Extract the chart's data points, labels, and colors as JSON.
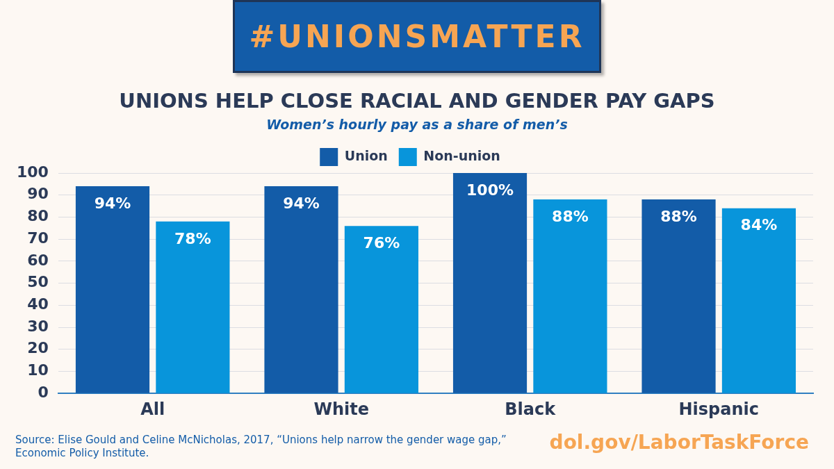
{
  "chart_data": {
    "type": "bar",
    "title": "UNIONS HELP CLOSE RACIAL AND GENDER PAY GAPS",
    "subtitle": "Women’s hourly pay as a share of men’s",
    "categories": [
      "All",
      "White",
      "Black",
      "Hispanic"
    ],
    "series": [
      {
        "name": "Union",
        "color": "#135ca8",
        "values": [
          94,
          94,
          100,
          88
        ],
        "value_labels": [
          "94%",
          "94%",
          "100%",
          "88%"
        ]
      },
      {
        "name": "Non-union",
        "color": "#0895db",
        "values": [
          78,
          76,
          88,
          84
        ],
        "value_labels": [
          "78%",
          "76%",
          "88%",
          "84%"
        ]
      }
    ],
    "ylim": [
      0,
      100
    ],
    "yticks": [
      0,
      10,
      20,
      30,
      40,
      50,
      60,
      70,
      80,
      90,
      100
    ],
    "grid": "y",
    "legend": "top",
    "annotations": [
      "#UNIONSMATTER",
      "Source: Elise Gould and Celine McNicholas, 2017, “Unions help narrow the gender wage gap,” Economic Policy Institute.",
      "dol.gov/LaborTaskForce"
    ]
  }
}
